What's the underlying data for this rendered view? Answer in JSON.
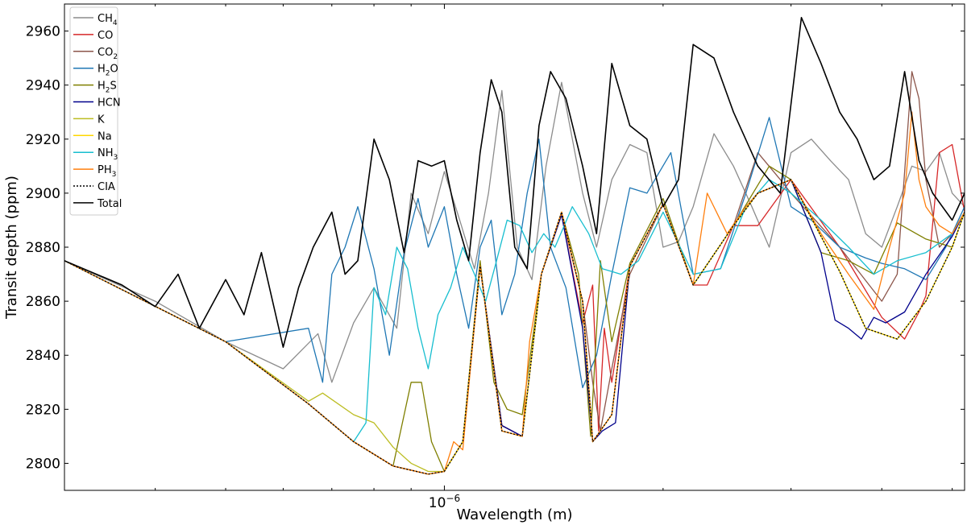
{
  "chart_data": {
    "type": "line",
    "xlabel": "Wavelength (m)",
    "ylabel": "Transit depth (ppm)",
    "xscale": "log",
    "xlim": [
      3e-07,
      5.2e-06
    ],
    "ylim": [
      2790,
      2970
    ],
    "yticks": [
      2800,
      2820,
      2840,
      2860,
      2880,
      2900,
      2920,
      2940,
      2960
    ],
    "xtick_major_label": {
      "base": "10",
      "exponent": "−6"
    },
    "grid": false,
    "legend_position": "upper-left",
    "series": [
      {
        "name": "CH4",
        "label_base": "CH",
        "label_sub": "4",
        "color": "#8c8c8c",
        "style": "solid",
        "x": [
          3e-07,
          4e-07,
          5e-07,
          6e-07,
          6.7e-07,
          7e-07,
          7.5e-07,
          8e-07,
          8.6e-07,
          9e-07,
          9.5e-07,
          1e-06,
          1.05e-06,
          1.1e-06,
          1.15e-06,
          1.2e-06,
          1.26e-06,
          1.32e-06,
          1.38e-06,
          1.45e-06,
          1.55e-06,
          1.62e-06,
          1.7e-06,
          1.8e-06,
          1.9e-06,
          2e-06,
          2.1e-06,
          2.2e-06,
          2.35e-06,
          2.5e-06,
          2.65e-06,
          2.8e-06,
          3e-06,
          3.2e-06,
          3.4e-06,
          3.6e-06,
          3.8e-06,
          4e-06,
          4.2e-06,
          4.4e-06,
          4.6e-06,
          4.8e-06,
          5e-06,
          5.2e-06
        ],
        "y": [
          2875,
          2860,
          2845,
          2835,
          2848,
          2830,
          2852,
          2865,
          2850,
          2900,
          2885,
          2908,
          2890,
          2872,
          2900,
          2938,
          2880,
          2868,
          2910,
          2941,
          2900,
          2880,
          2905,
          2918,
          2915,
          2880,
          2882,
          2895,
          2922,
          2910,
          2895,
          2880,
          2915,
          2920,
          2912,
          2905,
          2885,
          2880,
          2895,
          2910,
          2908,
          2915,
          2900,
          2895
        ]
      },
      {
        "name": "CO",
        "label_base": "CO",
        "label_sub": "",
        "color": "#d62728",
        "style": "solid",
        "x": [
          3e-07,
          5e-07,
          6.5e-07,
          7.5e-07,
          8.5e-07,
          9.5e-07,
          1e-06,
          1.06e-06,
          1.12e-06,
          1.2e-06,
          1.28e-06,
          1.36e-06,
          1.45e-06,
          1.55e-06,
          1.6e-06,
          1.63e-06,
          1.66e-06,
          1.7e-06,
          1.8e-06,
          2e-06,
          2.2e-06,
          2.3e-06,
          2.5e-06,
          2.7e-06,
          3e-06,
          3.5e-06,
          4e-06,
          4.3e-06,
          4.5e-06,
          4.6e-06,
          4.8e-06,
          5e-06,
          5.2e-06
        ],
        "y": [
          2875,
          2845,
          2822,
          2808,
          2799,
          2796,
          2797,
          2808,
          2873,
          2814,
          2810,
          2870,
          2892,
          2852,
          2866,
          2812,
          2850,
          2830,
          2873,
          2896,
          2866,
          2866,
          2888,
          2888,
          2905,
          2880,
          2854,
          2846,
          2856,
          2862,
          2915,
          2918,
          2893
        ]
      },
      {
        "name": "CO2",
        "label_base": "CO",
        "label_sub": "2",
        "color": "#8c564b",
        "style": "solid",
        "x": [
          3e-07,
          5e-07,
          6.5e-07,
          7.5e-07,
          8.5e-07,
          9.5e-07,
          1e-06,
          1.06e-06,
          1.12e-06,
          1.2e-06,
          1.28e-06,
          1.36e-06,
          1.45e-06,
          1.55e-06,
          1.6e-06,
          1.64e-06,
          1.7e-06,
          1.8e-06,
          2e-06,
          2.2e-06,
          2.5e-06,
          2.7e-06,
          2.9e-06,
          3e-06,
          3.5e-06,
          4e-06,
          4.2e-06,
          4.4e-06,
          4.5e-06,
          4.6e-06,
          4.8e-06,
          5e-06,
          5.2e-06
        ],
        "y": [
          2875,
          2845,
          2822,
          2808,
          2799,
          2796,
          2797,
          2808,
          2873,
          2814,
          2810,
          2870,
          2892,
          2860,
          2830,
          2812,
          2835,
          2870,
          2896,
          2866,
          2888,
          2915,
          2905,
          2900,
          2880,
          2860,
          2870,
          2945,
          2935,
          2905,
          2880,
          2885,
          2893
        ]
      },
      {
        "name": "H2O",
        "label_base": "H",
        "label_sub": "2",
        "label_rest": "O",
        "color": "#1f77b4",
        "style": "solid",
        "x": [
          3e-07,
          5e-07,
          6.5e-07,
          6.8e-07,
          7e-07,
          7.3e-07,
          7.6e-07,
          8e-07,
          8.4e-07,
          8.8e-07,
          9.2e-07,
          9.5e-07,
          1e-06,
          1.04e-06,
          1.08e-06,
          1.12e-06,
          1.16e-06,
          1.2e-06,
          1.25e-06,
          1.3e-06,
          1.35e-06,
          1.4e-06,
          1.47e-06,
          1.55e-06,
          1.62e-06,
          1.7e-06,
          1.8e-06,
          1.9e-06,
          2.05e-06,
          2.2e-06,
          2.4e-06,
          2.6e-06,
          2.8e-06,
          3e-06,
          3.2e-06,
          3.5e-06,
          3.8e-06,
          4e-06,
          4.3e-06,
          4.6e-06,
          4.9e-06,
          5.2e-06
        ],
        "y": [
          2875,
          2845,
          2850,
          2830,
          2870,
          2880,
          2895,
          2872,
          2840,
          2878,
          2898,
          2880,
          2895,
          2870,
          2850,
          2880,
          2890,
          2855,
          2870,
          2900,
          2920,
          2880,
          2865,
          2828,
          2840,
          2870,
          2902,
          2900,
          2915,
          2870,
          2872,
          2900,
          2928,
          2895,
          2890,
          2880,
          2876,
          2874,
          2872,
          2868,
          2880,
          2895
        ]
      },
      {
        "name": "H2S",
        "label_base": "H",
        "label_sub": "2",
        "label_rest": "S",
        "color": "#7f7f00",
        "style": "solid",
        "x": [
          3e-07,
          5e-07,
          6.5e-07,
          7.5e-07,
          8.5e-07,
          9e-07,
          9.3e-07,
          9.6e-07,
          1e-06,
          1.06e-06,
          1.12e-06,
          1.17e-06,
          1.22e-06,
          1.28e-06,
          1.36e-06,
          1.45e-06,
          1.53e-06,
          1.59e-06,
          1.64e-06,
          1.7e-06,
          1.8e-06,
          2e-06,
          2.2e-06,
          2.5e-06,
          2.8e-06,
          3e-06,
          3.3e-06,
          3.6e-06,
          3.9e-06,
          4.2e-06,
          4.6e-06,
          5e-06,
          5.2e-06
        ],
        "y": [
          2875,
          2845,
          2822,
          2808,
          2799,
          2830,
          2830,
          2808,
          2797,
          2808,
          2875,
          2830,
          2820,
          2818,
          2870,
          2893,
          2870,
          2810,
          2875,
          2845,
          2874,
          2898,
          2866,
          2888,
          2910,
          2905,
          2878,
          2875,
          2870,
          2889,
          2883,
          2880,
          2893
        ]
      },
      {
        "name": "HCN",
        "label_base": "HCN",
        "label_sub": "",
        "color": "#00008b",
        "style": "solid",
        "x": [
          3e-07,
          5e-07,
          6.5e-07,
          7.5e-07,
          8.5e-07,
          9.5e-07,
          1e-06,
          1.06e-06,
          1.12e-06,
          1.2e-06,
          1.28e-06,
          1.36e-06,
          1.45e-06,
          1.55e-06,
          1.6e-06,
          1.65e-06,
          1.72e-06,
          1.8e-06,
          2e-06,
          2.2e-06,
          2.5e-06,
          2.7e-06,
          3e-06,
          3.3e-06,
          3.45e-06,
          3.6e-06,
          3.75e-06,
          3.9e-06,
          4.05e-06,
          4.3e-06,
          4.6e-06,
          5e-06,
          5.2e-06
        ],
        "y": [
          2875,
          2845,
          2822,
          2808,
          2799,
          2796,
          2797,
          2808,
          2873,
          2814,
          2810,
          2870,
          2892,
          2850,
          2808,
          2812,
          2815,
          2873,
          2896,
          2866,
          2888,
          2900,
          2905,
          2878,
          2853,
          2850,
          2846,
          2854,
          2852,
          2856,
          2870,
          2884,
          2893
        ]
      },
      {
        "name": "K",
        "label_base": "K",
        "label_sub": "",
        "color": "#bcbd22",
        "style": "solid",
        "x": [
          3e-07,
          5e-07,
          6.5e-07,
          6.8e-07,
          7.5e-07,
          8e-07,
          8.5e-07,
          9e-07,
          9.5e-07,
          1e-06,
          1.06e-06,
          1.12e-06,
          1.2e-06,
          1.28e-06,
          1.36e-06,
          1.45e-06,
          1.55e-06,
          1.6e-06,
          1.7e-06,
          1.8e-06,
          2e-06,
          2.2e-06,
          2.5e-06,
          2.7e-06,
          3e-06,
          3.5e-06,
          3.8e-06,
          4.2e-06,
          4.6e-06,
          5e-06,
          5.2e-06
        ],
        "y": [
          2875,
          2845,
          2823,
          2826,
          2818,
          2815,
          2806,
          2800,
          2797,
          2797,
          2808,
          2873,
          2812,
          2810,
          2870,
          2893,
          2860,
          2808,
          2818,
          2873,
          2896,
          2866,
          2888,
          2900,
          2905,
          2871,
          2850,
          2846,
          2860,
          2880,
          2893
        ]
      },
      {
        "name": "Na",
        "label_base": "Na",
        "label_sub": "",
        "color": "#ffd700",
        "style": "solid",
        "x": [
          3e-07,
          5e-07,
          6.5e-07,
          7.5e-07,
          8.5e-07,
          9.5e-07,
          1e-06,
          1.06e-06,
          1.12e-06,
          1.2e-06,
          1.28e-06,
          1.36e-06,
          1.45e-06,
          1.55e-06,
          1.6e-06,
          1.7e-06,
          1.8e-06,
          2e-06,
          2.2e-06,
          2.5e-06,
          2.7e-06,
          3e-06,
          3.5e-06,
          3.8e-06,
          4.2e-06,
          4.6e-06,
          5e-06,
          5.2e-06
        ],
        "y": [
          2875,
          2845,
          2822,
          2808,
          2799,
          2796,
          2797,
          2808,
          2873,
          2812,
          2810,
          2870,
          2893,
          2860,
          2808,
          2818,
          2873,
          2896,
          2866,
          2888,
          2900,
          2905,
          2871,
          2850,
          2846,
          2860,
          2880,
          2893
        ]
      },
      {
        "name": "NH3",
        "label_base": "NH",
        "label_sub": "3",
        "color": "#17becf",
        "style": "solid",
        "x": [
          3e-07,
          5e-07,
          6.5e-07,
          7.5e-07,
          7.8e-07,
          8e-07,
          8.3e-07,
          8.6e-07,
          8.9e-07,
          9.2e-07,
          9.5e-07,
          9.8e-07,
          1.02e-06,
          1.06e-06,
          1.1e-06,
          1.14e-06,
          1.18e-06,
          1.22e-06,
          1.27e-06,
          1.32e-06,
          1.37e-06,
          1.42e-06,
          1.5e-06,
          1.58e-06,
          1.65e-06,
          1.75e-06,
          1.85e-06,
          2e-06,
          2.2e-06,
          2.4e-06,
          2.6e-06,
          2.8e-06,
          3e-06,
          3.3e-06,
          3.6e-06,
          3.9e-06,
          4.2e-06,
          4.6e-06,
          5e-06,
          5.2e-06
        ],
        "y": [
          2875,
          2845,
          2822,
          2808,
          2815,
          2865,
          2855,
          2880,
          2872,
          2850,
          2835,
          2855,
          2865,
          2880,
          2870,
          2860,
          2875,
          2890,
          2888,
          2878,
          2885,
          2880,
          2895,
          2885,
          2872,
          2870,
          2875,
          2893,
          2870,
          2872,
          2895,
          2905,
          2900,
          2890,
          2880,
          2870,
          2875,
          2878,
          2885,
          2893
        ]
      },
      {
        "name": "PH3",
        "label_base": "PH",
        "label_sub": "3",
        "color": "#ff7f0e",
        "style": "solid",
        "x": [
          3e-07,
          5e-07,
          6.5e-07,
          7.5e-07,
          8.5e-07,
          9.5e-07,
          1e-06,
          1.03e-06,
          1.06e-06,
          1.12e-06,
          1.2e-06,
          1.28e-06,
          1.31e-06,
          1.36e-06,
          1.45e-06,
          1.55e-06,
          1.6e-06,
          1.7e-06,
          1.8e-06,
          2e-06,
          2.2e-06,
          2.3e-06,
          2.45e-06,
          2.6e-06,
          2.7e-06,
          3e-06,
          3.3e-06,
          3.6e-06,
          3.9e-06,
          4.1e-06,
          4.3e-06,
          4.4e-06,
          4.5e-06,
          4.6e-06,
          4.8e-06,
          5e-06,
          5.2e-06
        ],
        "y": [
          2875,
          2845,
          2822,
          2808,
          2799,
          2796,
          2797,
          2808,
          2805,
          2873,
          2812,
          2810,
          2845,
          2870,
          2893,
          2860,
          2808,
          2818,
          2873,
          2896,
          2866,
          2900,
          2885,
          2895,
          2900,
          2905,
          2885,
          2870,
          2857,
          2880,
          2900,
          2930,
          2905,
          2895,
          2888,
          2885,
          2893
        ]
      },
      {
        "name": "CIA",
        "label_base": "CIA",
        "label_sub": "",
        "color": "#000000",
        "style": "dotted",
        "x": [
          3e-07,
          5e-07,
          6.5e-07,
          7.5e-07,
          8.5e-07,
          9.5e-07,
          1e-06,
          1.06e-06,
          1.12e-06,
          1.2e-06,
          1.28e-06,
          1.36e-06,
          1.45e-06,
          1.55e-06,
          1.6e-06,
          1.7e-06,
          1.8e-06,
          2e-06,
          2.2e-06,
          2.5e-06,
          2.7e-06,
          3e-06,
          3.5e-06,
          3.8e-06,
          4.2e-06,
          4.6e-06,
          5e-06,
          5.2e-06
        ],
        "y": [
          2875,
          2845,
          2822,
          2808,
          2799,
          2796,
          2797,
          2808,
          2873,
          2812,
          2810,
          2870,
          2893,
          2860,
          2808,
          2818,
          2873,
          2896,
          2866,
          2888,
          2900,
          2905,
          2871,
          2850,
          2846,
          2860,
          2880,
          2893
        ]
      },
      {
        "name": "Total",
        "label_base": "Total",
        "label_sub": "",
        "color": "#000000",
        "style": "solid",
        "x": [
          3e-07,
          3.6e-07,
          4e-07,
          4.3e-07,
          4.6e-07,
          5e-07,
          5.3e-07,
          5.6e-07,
          6e-07,
          6.3e-07,
          6.6e-07,
          7e-07,
          7.3e-07,
          7.6e-07,
          8e-07,
          8.4e-07,
          8.8e-07,
          9.2e-07,
          9.6e-07,
          1e-06,
          1.04e-06,
          1.08e-06,
          1.12e-06,
          1.16e-06,
          1.2e-06,
          1.25e-06,
          1.3e-06,
          1.35e-06,
          1.4e-06,
          1.47e-06,
          1.55e-06,
          1.62e-06,
          1.7e-06,
          1.8e-06,
          1.9e-06,
          2e-06,
          2.1e-06,
          2.2e-06,
          2.35e-06,
          2.5e-06,
          2.7e-06,
          2.9e-06,
          3.1e-06,
          3.3e-06,
          3.5e-06,
          3.7e-06,
          3.9e-06,
          4.1e-06,
          4.3e-06,
          4.5e-06,
          4.7e-06,
          5e-06,
          5.2e-06
        ],
        "y": [
          2875,
          2866,
          2858,
          2870,
          2850,
          2868,
          2855,
          2878,
          2843,
          2865,
          2880,
          2893,
          2870,
          2875,
          2920,
          2905,
          2878,
          2912,
          2910,
          2912,
          2890,
          2875,
          2915,
          2942,
          2930,
          2880,
          2872,
          2925,
          2945,
          2935,
          2910,
          2885,
          2948,
          2925,
          2920,
          2895,
          2905,
          2955,
          2950,
          2930,
          2910,
          2900,
          2965,
          2948,
          2930,
          2920,
          2905,
          2910,
          2945,
          2912,
          2900,
          2890,
          2900
        ]
      }
    ]
  }
}
